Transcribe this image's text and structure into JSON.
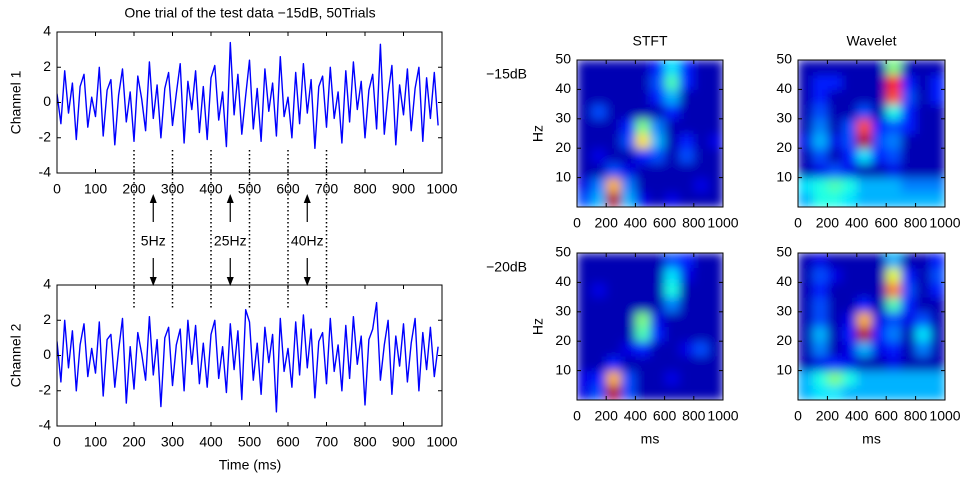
{
  "chart_data": [
    {
      "type": "line",
      "title": "One trial of the test data −15dB, 50Trials",
      "ylabel": "Channel 1",
      "color": "#0000ff",
      "x": [
        0,
        10,
        20,
        30,
        40,
        50,
        60,
        70,
        80,
        90,
        100,
        110,
        120,
        130,
        140,
        150,
        160,
        170,
        180,
        190,
        200,
        210,
        220,
        230,
        240,
        250,
        260,
        270,
        280,
        290,
        300,
        310,
        320,
        330,
        340,
        350,
        360,
        370,
        380,
        390,
        400,
        410,
        420,
        430,
        440,
        450,
        460,
        470,
        480,
        490,
        500,
        510,
        520,
        530,
        540,
        550,
        560,
        570,
        580,
        590,
        600,
        610,
        620,
        630,
        640,
        650,
        660,
        670,
        680,
        690,
        700,
        710,
        720,
        730,
        740,
        750,
        760,
        770,
        780,
        790,
        800,
        810,
        820,
        830,
        840,
        850,
        860,
        870,
        880,
        890,
        900,
        910,
        920,
        930,
        940,
        950,
        960,
        970,
        980,
        990
      ],
      "values": [
        0.5,
        -1.2,
        1.8,
        -0.6,
        1.1,
        -2.1,
        0.9,
        1.6,
        -1.4,
        0.3,
        -0.8,
        2.0,
        -1.9,
        0.7,
        1.3,
        -2.4,
        0.4,
        1.9,
        -1.1,
        0.6,
        -2.2,
        1.5,
        0.2,
        -1.6,
        2.3,
        -0.9,
        1.0,
        -2.0,
        0.8,
        1.7,
        -1.3,
        0.5,
        2.2,
        -2.3,
        1.2,
        -0.4,
        1.8,
        -1.7,
        0.9,
        -2.1,
        1.4,
        2.1,
        -1.0,
        0.6,
        -2.5,
        3.4,
        -0.7,
        1.6,
        -1.8,
        0.4,
        2.4,
        -1.5,
        0.8,
        -2.2,
        1.9,
        -0.5,
        1.1,
        -1.9,
        2.6,
        -0.8,
        0.3,
        -2.0,
        1.7,
        -1.2,
        2.2,
        -0.6,
        1.3,
        -2.6,
        0.9,
        1.5,
        -1.4,
        2.0,
        -0.9,
        0.6,
        -2.3,
        1.8,
        -1.1,
        2.3,
        -0.4,
        1.2,
        -2.0,
        0.7,
        1.6,
        -1.5,
        3.3,
        -1.8,
        0.5,
        2.1,
        -2.4,
        1.0,
        -0.7,
        1.9,
        -1.6,
        0.8,
        2.0,
        -2.2,
        1.4,
        -0.9,
        1.7,
        -1.3
      ],
      "xlim": [
        0,
        1000
      ],
      "xticks": [
        0,
        100,
        200,
        300,
        400,
        500,
        600,
        700,
        800,
        900,
        1000
      ],
      "ylim": [
        -4,
        4
      ],
      "yticks": [
        -4,
        -2,
        0,
        2,
        4
      ],
      "annotations": [
        {
          "text": "5Hz",
          "x": [
            200,
            300
          ]
        },
        {
          "text": "25Hz",
          "x": [
            400,
            500
          ]
        },
        {
          "text": "40Hz",
          "x": [
            600,
            700
          ]
        }
      ]
    },
    {
      "type": "line",
      "ylabel": "Channel 2",
      "xlabel": "Time (ms)",
      "color": "#0000ff",
      "x": [
        0,
        10,
        20,
        30,
        40,
        50,
        60,
        70,
        80,
        90,
        100,
        110,
        120,
        130,
        140,
        150,
        160,
        170,
        180,
        190,
        200,
        210,
        220,
        230,
        240,
        250,
        260,
        270,
        280,
        290,
        300,
        310,
        320,
        330,
        340,
        350,
        360,
        370,
        380,
        390,
        400,
        410,
        420,
        430,
        440,
        450,
        460,
        470,
        480,
        490,
        500,
        510,
        520,
        530,
        540,
        550,
        560,
        570,
        580,
        590,
        600,
        610,
        620,
        630,
        640,
        650,
        660,
        670,
        680,
        690,
        700,
        710,
        720,
        730,
        740,
        750,
        760,
        770,
        780,
        790,
        800,
        810,
        820,
        830,
        840,
        850,
        860,
        870,
        880,
        890,
        900,
        910,
        920,
        930,
        940,
        950,
        960,
        970,
        980,
        990
      ],
      "values": [
        0.8,
        -1.5,
        2.0,
        -0.7,
        1.4,
        -2.0,
        0.6,
        1.8,
        -1.2,
        0.4,
        -1.0,
        1.9,
        -2.3,
        0.9,
        1.2,
        -1.8,
        0.3,
        2.1,
        -2.7,
        0.5,
        -1.9,
        1.3,
        0.1,
        -1.4,
        2.2,
        -1.1,
        0.9,
        -2.9,
        1.0,
        1.6,
        -1.7,
        0.6,
        1.5,
        -2.0,
        2.0,
        -0.5,
        1.7,
        -1.6,
        0.7,
        -1.8,
        1.2,
        2.0,
        -1.3,
        0.5,
        -2.1,
        1.8,
        -0.8,
        1.4,
        -2.5,
        2.6,
        1.9,
        -1.4,
        0.7,
        -2.2,
        1.6,
        -0.4,
        1.2,
        -3.2,
        2.1,
        -0.9,
        0.4,
        -1.8,
        1.9,
        -1.1,
        2.3,
        -0.7,
        1.5,
        -2.4,
        0.8,
        1.3,
        -1.6,
        2.1,
        -0.9,
        0.6,
        -2.0,
        1.7,
        -1.3,
        2.2,
        -0.5,
        1.1,
        -2.8,
        0.9,
        1.5,
        3.0,
        -1.4,
        0.6,
        2.0,
        -2.2,
        1.1,
        -0.6,
        1.8,
        -1.5,
        0.7,
        2.1,
        -2.0,
        1.3,
        -0.8,
        1.6,
        -1.2,
        0.5
      ],
      "xlim": [
        0,
        1000
      ],
      "xticks": [
        0,
        100,
        200,
        300,
        400,
        500,
        600,
        700,
        800,
        900,
        1000
      ],
      "ylim": [
        -4,
        4
      ],
      "yticks": [
        -4,
        -2,
        0,
        2,
        4
      ]
    },
    {
      "type": "heatmap",
      "title": "STFT",
      "row_label": "−15dB",
      "ylabel": "Hz",
      "xlim": [
        0,
        1000
      ],
      "ylim": [
        0,
        50
      ],
      "xticks": [
        0,
        200,
        400,
        600,
        800,
        1000
      ],
      "yticks": [
        10,
        20,
        30,
        40,
        50
      ],
      "z": [
        [
          0.2,
          0.3,
          0.95,
          0.3,
          0.1,
          0.05,
          0.1,
          0.05,
          0.05,
          0.05
        ],
        [
          0.1,
          0.25,
          0.7,
          0.25,
          0.05,
          0.05,
          0.05,
          0.05,
          0.1,
          0.05
        ],
        [
          0.05,
          0.05,
          0.2,
          0.1,
          0.05,
          0.05,
          0.05,
          0.05,
          0.05,
          0.05
        ],
        [
          0.05,
          0.1,
          0.05,
          0.05,
          0.15,
          0.2,
          0.05,
          0.2,
          0.05,
          0.05
        ],
        [
          0.05,
          0.05,
          0.05,
          0.2,
          0.65,
          0.3,
          0.05,
          0.15,
          0.05,
          0.1
        ],
        [
          0.05,
          0.05,
          0.05,
          0.15,
          0.5,
          0.25,
          0.05,
          0.05,
          0.05,
          0.05
        ],
        [
          0.05,
          0.2,
          0.05,
          0.05,
          0.05,
          0.05,
          0.15,
          0.05,
          0.05,
          0.05
        ],
        [
          0.05,
          0.05,
          0.05,
          0.05,
          0.05,
          0.15,
          0.3,
          0.05,
          0.05,
          0.05
        ],
        [
          0.05,
          0.05,
          0.05,
          0.05,
          0.05,
          0.2,
          0.45,
          0.15,
          0.05,
          0.05
        ],
        [
          0.05,
          0.05,
          0.05,
          0.05,
          0.05,
          0.15,
          0.35,
          0.15,
          0.05,
          0.05
        ]
      ]
    },
    {
      "type": "heatmap",
      "title": "Wavelet",
      "xlim": [
        0,
        1000
      ],
      "ylim": [
        0,
        50
      ],
      "xticks": [
        0,
        200,
        400,
        600,
        800,
        1000
      ],
      "yticks": [
        10,
        20,
        30,
        40,
        50
      ],
      "z": [
        [
          0.3,
          0.4,
          0.4,
          0.35,
          0.3,
          0.3,
          0.3,
          0.3,
          0.3,
          0.3
        ],
        [
          0.35,
          0.4,
          0.45,
          0.4,
          0.3,
          0.3,
          0.3,
          0.25,
          0.25,
          0.25
        ],
        [
          0.05,
          0.1,
          0.2,
          0.1,
          0.05,
          0.05,
          0.1,
          0.05,
          0.05,
          0.05
        ],
        [
          0.05,
          0.2,
          0.05,
          0.15,
          0.35,
          0.15,
          0.2,
          0.05,
          0.05,
          0.05
        ],
        [
          0.1,
          0.3,
          0.1,
          0.2,
          0.95,
          0.2,
          0.25,
          0.05,
          0.05,
          0.05
        ],
        [
          0.05,
          0.25,
          0.05,
          0.2,
          0.8,
          0.15,
          0.2,
          0.15,
          0.05,
          0.05
        ],
        [
          0.05,
          0.2,
          0.05,
          0.05,
          0.2,
          0.05,
          0.4,
          0.15,
          0.05,
          0.05
        ],
        [
          0.05,
          0.15,
          0.05,
          0.05,
          0.05,
          0.05,
          0.8,
          0.2,
          0.05,
          0.15
        ],
        [
          0.05,
          0.15,
          0.15,
          0.05,
          0.05,
          0.05,
          0.85,
          0.15,
          0.05,
          0.15
        ],
        [
          0.05,
          0.05,
          0.05,
          0.05,
          0.05,
          0.05,
          0.5,
          0.05,
          0.05,
          0.05
        ]
      ]
    },
    {
      "type": "heatmap",
      "row_label": "−20dB",
      "ylabel": "Hz",
      "xlabel": "ms",
      "xlim": [
        0,
        1000
      ],
      "ylim": [
        0,
        50
      ],
      "xticks": [
        0,
        200,
        400,
        600,
        800,
        1000
      ],
      "yticks": [
        10,
        20,
        30,
        40,
        50
      ],
      "z": [
        [
          0.1,
          0.2,
          0.95,
          0.2,
          0.05,
          0.05,
          0.05,
          0.05,
          0.05,
          0.05
        ],
        [
          0.1,
          0.15,
          0.7,
          0.2,
          0.05,
          0.05,
          0.1,
          0.05,
          0.05,
          0.05
        ],
        [
          0.05,
          0.05,
          0.15,
          0.05,
          0.05,
          0.05,
          0.05,
          0.05,
          0.05,
          0.05
        ],
        [
          0.05,
          0.05,
          0.05,
          0.1,
          0.15,
          0.05,
          0.05,
          0.1,
          0.2,
          0.05
        ],
        [
          0.05,
          0.05,
          0.05,
          0.05,
          0.45,
          0.15,
          0.05,
          0.05,
          0.05,
          0.05
        ],
        [
          0.05,
          0.05,
          0.05,
          0.05,
          0.5,
          0.1,
          0.05,
          0.05,
          0.05,
          0.05
        ],
        [
          0.05,
          0.05,
          0.05,
          0.05,
          0.05,
          0.05,
          0.25,
          0.05,
          0.05,
          0.05
        ],
        [
          0.05,
          0.1,
          0.05,
          0.05,
          0.05,
          0.05,
          0.4,
          0.05,
          0.05,
          0.05
        ],
        [
          0.05,
          0.05,
          0.05,
          0.05,
          0.05,
          0.05,
          0.35,
          0.1,
          0.05,
          0.05
        ],
        [
          0.05,
          0.05,
          0.05,
          0.05,
          0.05,
          0.05,
          0.2,
          0.15,
          0.05,
          0.05
        ]
      ]
    },
    {
      "type": "heatmap",
      "xlabel": "ms",
      "xlim": [
        0,
        1000
      ],
      "ylim": [
        0,
        50
      ],
      "xticks": [
        0,
        200,
        400,
        600,
        800,
        1000
      ],
      "yticks": [
        10,
        20,
        30,
        40,
        50
      ],
      "z": [
        [
          0.3,
          0.35,
          0.35,
          0.3,
          0.3,
          0.3,
          0.3,
          0.3,
          0.3,
          0.3
        ],
        [
          0.3,
          0.4,
          0.5,
          0.4,
          0.3,
          0.3,
          0.3,
          0.3,
          0.3,
          0.3
        ],
        [
          0.05,
          0.1,
          0.15,
          0.1,
          0.05,
          0.05,
          0.1,
          0.05,
          0.05,
          0.05
        ],
        [
          0.05,
          0.25,
          0.05,
          0.1,
          0.3,
          0.1,
          0.15,
          0.05,
          0.25,
          0.05
        ],
        [
          0.05,
          0.3,
          0.05,
          0.15,
          0.95,
          0.15,
          0.25,
          0.05,
          0.35,
          0.05
        ],
        [
          0.05,
          0.2,
          0.05,
          0.1,
          0.7,
          0.1,
          0.2,
          0.1,
          0.2,
          0.05
        ],
        [
          0.05,
          0.2,
          0.05,
          0.05,
          0.15,
          0.05,
          0.45,
          0.15,
          0.05,
          0.05
        ],
        [
          0.05,
          0.15,
          0.05,
          0.05,
          0.05,
          0.05,
          0.75,
          0.2,
          0.05,
          0.15
        ],
        [
          0.05,
          0.2,
          0.1,
          0.05,
          0.05,
          0.05,
          0.6,
          0.15,
          0.05,
          0.2
        ],
        [
          0.05,
          0.1,
          0.05,
          0.05,
          0.05,
          0.05,
          0.3,
          0.05,
          0.05,
          0.15
        ]
      ]
    }
  ]
}
